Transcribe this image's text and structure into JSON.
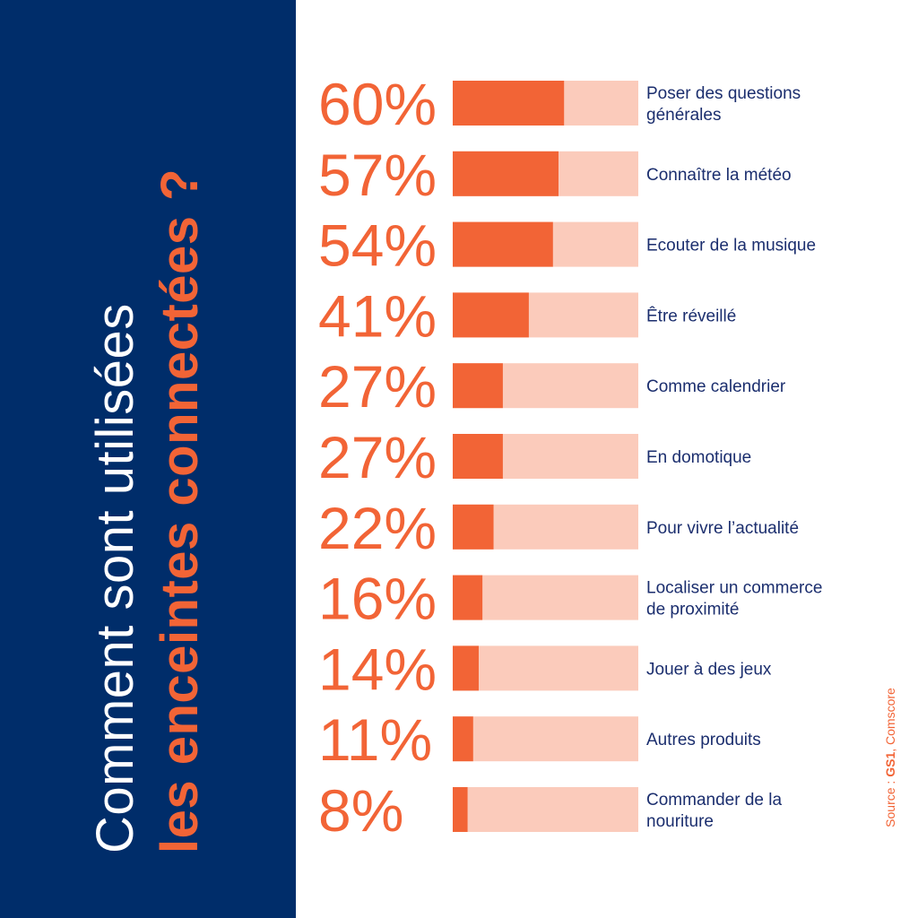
{
  "title": {
    "line1": "Comment sont utilisées",
    "line2": "les enceintes connectées ?"
  },
  "source": {
    "prefix": "Source : ",
    "brand": "GS1",
    "suffix": ", Comscore"
  },
  "colors": {
    "panel": "#002d6a",
    "accent": "#f26436",
    "bar_background": "#fbcbbb",
    "label": "#1b2e6e"
  },
  "chart_data": {
    "type": "bar",
    "orientation": "horizontal",
    "xlim": [
      0,
      100
    ],
    "categories": [
      [
        "Poser des questions",
        "générales"
      ],
      [
        "Connaître la météo"
      ],
      [
        "Ecouter de la musique"
      ],
      [
        "Être réveillé"
      ],
      [
        "Comme calendrier"
      ],
      [
        "En domotique"
      ],
      [
        "Pour vivre l’actualité"
      ],
      [
        "Localiser un commerce",
        "de proximité"
      ],
      [
        "Jouer à des jeux"
      ],
      [
        "Autres produits"
      ],
      [
        "Commander de la",
        "nouriture"
      ]
    ],
    "values": [
      60,
      57,
      54,
      41,
      27,
      27,
      22,
      16,
      14,
      11,
      8
    ],
    "value_labels": [
      "60%",
      "57%",
      "54%",
      "41%",
      "27%",
      "27%",
      "22%",
      "16%",
      "14%",
      "11%",
      "8%"
    ]
  }
}
